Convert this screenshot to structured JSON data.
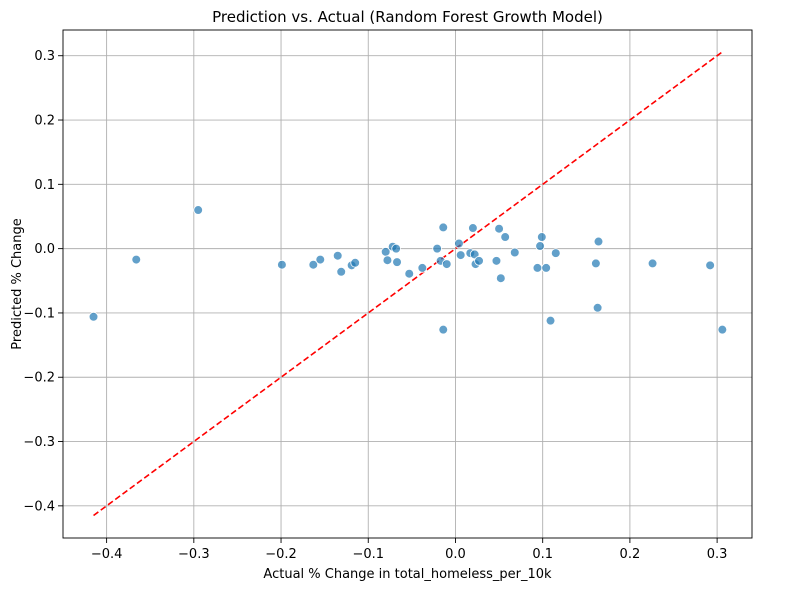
{
  "chart_data": {
    "type": "scatter",
    "title": "Prediction vs. Actual (Random Forest Growth Model)",
    "xlabel": "Actual % Change in total_homeless_per_10k",
    "ylabel": "Predicted % Change",
    "xlim": [
      -0.45,
      0.34
    ],
    "ylim": [
      -0.45,
      0.34
    ],
    "xticks": [
      -0.4,
      -0.3,
      -0.2,
      -0.1,
      0.0,
      0.1,
      0.2,
      0.3
    ],
    "yticks": [
      -0.4,
      -0.3,
      -0.2,
      -0.1,
      0.0,
      0.1,
      0.2,
      0.3
    ],
    "xtick_labels": [
      "−0.4",
      "−0.3",
      "−0.2",
      "−0.1",
      "0.0",
      "0.1",
      "0.2",
      "0.3"
    ],
    "ytick_labels": [
      "−0.4",
      "−0.3",
      "−0.2",
      "−0.1",
      "0.0",
      "0.1",
      "0.2",
      "0.3"
    ],
    "grid": true,
    "point_color": "#1f77b4",
    "reference_line": {
      "from": [
        -0.415,
        -0.415
      ],
      "to": [
        0.305,
        0.305
      ],
      "color": "#ff0000",
      "style": "dashed"
    },
    "points": [
      {
        "x": -0.415,
        "y": -0.106
      },
      {
        "x": -0.366,
        "y": -0.017
      },
      {
        "x": -0.295,
        "y": 0.06
      },
      {
        "x": -0.199,
        "y": -0.025
      },
      {
        "x": -0.163,
        "y": -0.025
      },
      {
        "x": -0.155,
        "y": -0.017
      },
      {
        "x": -0.135,
        "y": -0.011
      },
      {
        "x": -0.131,
        "y": -0.036
      },
      {
        "x": -0.119,
        "y": -0.026
      },
      {
        "x": -0.115,
        "y": -0.022
      },
      {
        "x": -0.08,
        "y": -0.005
      },
      {
        "x": -0.078,
        "y": -0.018
      },
      {
        "x": -0.072,
        "y": 0.003
      },
      {
        "x": -0.068,
        "y": 0.0
      },
      {
        "x": -0.067,
        "y": -0.021
      },
      {
        "x": -0.053,
        "y": -0.039
      },
      {
        "x": -0.038,
        "y": -0.03
      },
      {
        "x": -0.021,
        "y": 0.0
      },
      {
        "x": -0.017,
        "y": -0.019
      },
      {
        "x": -0.014,
        "y": 0.033
      },
      {
        "x": -0.014,
        "y": -0.126
      },
      {
        "x": -0.01,
        "y": -0.024
      },
      {
        "x": 0.004,
        "y": 0.008
      },
      {
        "x": 0.006,
        "y": -0.01
      },
      {
        "x": 0.017,
        "y": -0.007
      },
      {
        "x": 0.02,
        "y": 0.032
      },
      {
        "x": 0.022,
        "y": -0.009
      },
      {
        "x": 0.023,
        "y": -0.024
      },
      {
        "x": 0.027,
        "y": -0.019
      },
      {
        "x": 0.047,
        "y": -0.019
      },
      {
        "x": 0.05,
        "y": 0.031
      },
      {
        "x": 0.052,
        "y": -0.046
      },
      {
        "x": 0.057,
        "y": 0.018
      },
      {
        "x": 0.068,
        "y": -0.006
      },
      {
        "x": 0.094,
        "y": -0.03
      },
      {
        "x": 0.097,
        "y": 0.004
      },
      {
        "x": 0.099,
        "y": 0.018
      },
      {
        "x": 0.104,
        "y": -0.03
      },
      {
        "x": 0.109,
        "y": -0.112
      },
      {
        "x": 0.115,
        "y": -0.007
      },
      {
        "x": 0.161,
        "y": -0.023
      },
      {
        "x": 0.163,
        "y": -0.092
      },
      {
        "x": 0.164,
        "y": 0.011
      },
      {
        "x": 0.226,
        "y": -0.023
      },
      {
        "x": 0.292,
        "y": -0.026
      },
      {
        "x": 0.306,
        "y": -0.126
      }
    ]
  }
}
